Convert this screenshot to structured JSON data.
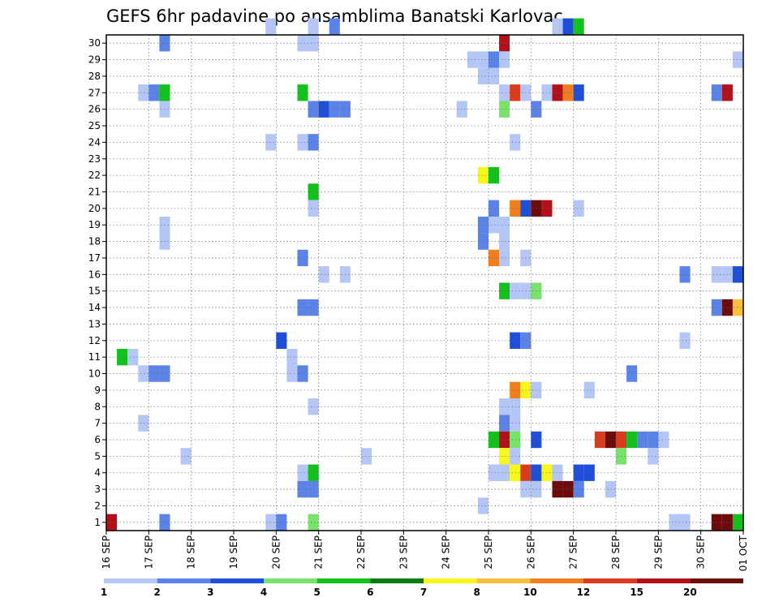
{
  "chart_data": {
    "type": "heatmap",
    "title": "GEFS 6hr padavine po ansamblima Banatski Karlovac",
    "x_tick_labels": [
      "16 SEP",
      "17 SEP",
      "18 SEP",
      "19 SEP",
      "20 SEP",
      "21 SEP",
      "22 SEP",
      "23 SEP",
      "24 SEP",
      "25 SEP",
      "26 SEP",
      "27 SEP",
      "28 SEP",
      "29 SEP",
      "30 SEP",
      "01 OCT"
    ],
    "y_tick_labels": [
      "1",
      "2",
      "3",
      "4",
      "5",
      "6",
      "7",
      "8",
      "9",
      "10",
      "11",
      "12",
      "13",
      "14",
      "15",
      "16",
      "17",
      "18",
      "19",
      "20",
      "21",
      "22",
      "23",
      "24",
      "25",
      "26",
      "27",
      "28",
      "29",
      "30"
    ],
    "x_steps_per_day": 4,
    "colorbar_labels": [
      "1",
      "2",
      "3",
      "4",
      "5",
      "6",
      "7",
      "8",
      "10",
      "12",
      "15",
      "20"
    ],
    "colorbar_colors": [
      "#b3c6f5",
      "#5b82e6",
      "#1f4fd9",
      "#77e36a",
      "#13c11c",
      "#0b7a10",
      "#f7f71a",
      "#f9be3c",
      "#f17e1e",
      "#dc3a1c",
      "#b3111a",
      "#6d0a0a"
    ],
    "grid": true,
    "ylim": [
      0,
      30
    ],
    "cells": [
      {
        "m": 30,
        "s": 15,
        "v": 1
      },
      {
        "m": 30,
        "s": 19,
        "v": 1
      },
      {
        "m": 30,
        "s": 21,
        "v": 2
      },
      {
        "m": 30,
        "s": 42,
        "v": 1
      },
      {
        "m": 30,
        "s": 43,
        "v": 3
      },
      {
        "m": 30,
        "s": 44,
        "v": 5
      },
      {
        "m": 29,
        "s": 5,
        "v": 2
      },
      {
        "m": 29,
        "s": 18,
        "v": 1
      },
      {
        "m": 29,
        "s": 19,
        "v": 1
      },
      {
        "m": 29,
        "s": 37,
        "v": 15
      },
      {
        "m": 28,
        "s": 34,
        "v": 1
      },
      {
        "m": 28,
        "s": 35,
        "v": 1
      },
      {
        "m": 28,
        "s": 36,
        "v": 2
      },
      {
        "m": 28,
        "s": 37,
        "v": 1
      },
      {
        "m": 28,
        "s": 59,
        "v": 1
      },
      {
        "m": 28,
        "s": 61,
        "v": 3
      },
      {
        "m": 28,
        "s": 62,
        "v": 1
      },
      {
        "m": 27,
        "s": 35,
        "v": 1
      },
      {
        "m": 27,
        "s": 36,
        "v": 1
      },
      {
        "m": 26,
        "s": 3,
        "v": 1
      },
      {
        "m": 26,
        "s": 4,
        "v": 2
      },
      {
        "m": 26,
        "s": 5,
        "v": 5
      },
      {
        "m": 26,
        "s": 18,
        "v": 5
      },
      {
        "m": 26,
        "s": 37,
        "v": 1
      },
      {
        "m": 26,
        "s": 38,
        "v": 12
      },
      {
        "m": 26,
        "s": 39,
        "v": 1
      },
      {
        "m": 26,
        "s": 41,
        "v": 1
      },
      {
        "m": 26,
        "s": 42,
        "v": 15
      },
      {
        "m": 26,
        "s": 43,
        "v": 10
      },
      {
        "m": 26,
        "s": 44,
        "v": 3
      },
      {
        "m": 26,
        "s": 57,
        "v": 2
      },
      {
        "m": 26,
        "s": 58,
        "v": 15
      },
      {
        "m": 26,
        "s": 62,
        "v": 1
      },
      {
        "m": 25,
        "s": 5,
        "v": 1
      },
      {
        "m": 25,
        "s": 19,
        "v": 2
      },
      {
        "m": 25,
        "s": 20,
        "v": 3
      },
      {
        "m": 25,
        "s": 21,
        "v": 2
      },
      {
        "m": 25,
        "s": 22,
        "v": 2
      },
      {
        "m": 25,
        "s": 33,
        "v": 1
      },
      {
        "m": 25,
        "s": 37,
        "v": 4
      },
      {
        "m": 25,
        "s": 40,
        "v": 2
      },
      {
        "m": 25,
        "s": 72,
        "v": 5
      },
      {
        "m": 23,
        "s": 15,
        "v": 1
      },
      {
        "m": 23,
        "s": 18,
        "v": 1
      },
      {
        "m": 23,
        "s": 19,
        "v": 2
      },
      {
        "m": 23,
        "s": 38,
        "v": 1
      },
      {
        "m": 21,
        "s": 35,
        "v": 7
      },
      {
        "m": 21,
        "s": 36,
        "v": 5
      },
      {
        "m": 20,
        "s": 19,
        "v": 5
      },
      {
        "m": 19,
        "s": 19,
        "v": 1
      },
      {
        "m": 19,
        "s": 36,
        "v": 2
      },
      {
        "m": 19,
        "s": 38,
        "v": 10
      },
      {
        "m": 19,
        "s": 39,
        "v": 3
      },
      {
        "m": 19,
        "s": 40,
        "v": 20
      },
      {
        "m": 19,
        "s": 41,
        "v": 15
      },
      {
        "m": 19,
        "s": 44,
        "v": 1
      },
      {
        "m": 19,
        "s": 63,
        "v": 2
      },
      {
        "m": 18,
        "s": 5,
        "v": 1
      },
      {
        "m": 18,
        "s": 35,
        "v": 2
      },
      {
        "m": 18,
        "s": 36,
        "v": 1
      },
      {
        "m": 18,
        "s": 37,
        "v": 1
      },
      {
        "m": 18,
        "s": 67,
        "v": 2
      },
      {
        "m": 17,
        "s": 5,
        "v": 1
      },
      {
        "m": 17,
        "s": 35,
        "v": 2
      },
      {
        "m": 17,
        "s": 37,
        "v": 1
      },
      {
        "m": 16,
        "s": 18,
        "v": 2
      },
      {
        "m": 16,
        "s": 36,
        "v": 10
      },
      {
        "m": 16,
        "s": 37,
        "v": 1
      },
      {
        "m": 16,
        "s": 39,
        "v": 1
      },
      {
        "m": 15,
        "s": 20,
        "v": 1
      },
      {
        "m": 15,
        "s": 22,
        "v": 1
      },
      {
        "m": 15,
        "s": 54,
        "v": 2
      },
      {
        "m": 15,
        "s": 57,
        "v": 1
      },
      {
        "m": 15,
        "s": 58,
        "v": 1
      },
      {
        "m": 15,
        "s": 59,
        "v": 3
      },
      {
        "m": 15,
        "s": 60,
        "v": 4
      },
      {
        "m": 14,
        "s": 37,
        "v": 5
      },
      {
        "m": 14,
        "s": 38,
        "v": 1
      },
      {
        "m": 14,
        "s": 39,
        "v": 1
      },
      {
        "m": 14,
        "s": 40,
        "v": 4
      },
      {
        "m": 13,
        "s": 18,
        "v": 2
      },
      {
        "m": 13,
        "s": 19,
        "v": 2
      },
      {
        "m": 13,
        "s": 57,
        "v": 2
      },
      {
        "m": 13,
        "s": 58,
        "v": 20
      },
      {
        "m": 13,
        "s": 59,
        "v": 8
      },
      {
        "m": 13,
        "s": 60,
        "v": 10
      },
      {
        "m": 13,
        "s": 61,
        "v": 12
      },
      {
        "m": 13,
        "s": 62,
        "v": 5
      },
      {
        "m": 13,
        "s": 63,
        "v": 7
      },
      {
        "m": 13,
        "s": 64,
        "v": 20
      },
      {
        "m": 13,
        "s": 65,
        "v": 12
      },
      {
        "m": 13,
        "s": 66,
        "v": 3
      },
      {
        "m": 13,
        "s": 67,
        "v": 3
      },
      {
        "m": 13,
        "s": 68,
        "v": 3
      },
      {
        "m": 11,
        "s": 16,
        "v": 3
      },
      {
        "m": 11,
        "s": 38,
        "v": 3
      },
      {
        "m": 11,
        "s": 39,
        "v": 2
      },
      {
        "m": 11,
        "s": 54,
        "v": 1
      },
      {
        "m": 10,
        "s": 1,
        "v": 5
      },
      {
        "m": 10,
        "s": 2,
        "v": 1
      },
      {
        "m": 10,
        "s": 17,
        "v": 1
      },
      {
        "m": 9,
        "s": 3,
        "v": 1
      },
      {
        "m": 9,
        "s": 4,
        "v": 2
      },
      {
        "m": 9,
        "s": 5,
        "v": 2
      },
      {
        "m": 9,
        "s": 17,
        "v": 1
      },
      {
        "m": 9,
        "s": 18,
        "v": 2
      },
      {
        "m": 9,
        "s": 49,
        "v": 2
      },
      {
        "m": 8,
        "s": 38,
        "v": 10
      },
      {
        "m": 8,
        "s": 39,
        "v": 7
      },
      {
        "m": 8,
        "s": 40,
        "v": 1
      },
      {
        "m": 8,
        "s": 45,
        "v": 1
      },
      {
        "m": 7,
        "s": 19,
        "v": 1
      },
      {
        "m": 7,
        "s": 37,
        "v": 1
      },
      {
        "m": 7,
        "s": 38,
        "v": 1
      },
      {
        "m": 6,
        "s": 3,
        "v": 1
      },
      {
        "m": 6,
        "s": 37,
        "v": 2
      },
      {
        "m": 6,
        "s": 38,
        "v": 1
      },
      {
        "m": 6,
        "s": 70,
        "v": 3
      },
      {
        "m": 6,
        "s": 71,
        "v": 2
      },
      {
        "m": 6,
        "s": 72,
        "v": 15
      },
      {
        "m": 5,
        "s": 36,
        "v": 5
      },
      {
        "m": 5,
        "s": 37,
        "v": 15
      },
      {
        "m": 5,
        "s": 38,
        "v": 4
      },
      {
        "m": 5,
        "s": 40,
        "v": 3
      },
      {
        "m": 5,
        "s": 46,
        "v": 12
      },
      {
        "m": 5,
        "s": 47,
        "v": 20
      },
      {
        "m": 5,
        "s": 48,
        "v": 12
      },
      {
        "m": 5,
        "s": 49,
        "v": 5
      },
      {
        "m": 5,
        "s": 50,
        "v": 2
      },
      {
        "m": 5,
        "s": 51,
        "v": 2
      },
      {
        "m": 5,
        "s": 52,
        "v": 1
      },
      {
        "m": 5,
        "s": 60,
        "v": 1
      },
      {
        "m": 5,
        "s": 63,
        "v": 10
      },
      {
        "m": 5,
        "s": 64,
        "v": 10
      },
      {
        "m": 4,
        "s": 7,
        "v": 1
      },
      {
        "m": 4,
        "s": 24,
        "v": 1
      },
      {
        "m": 4,
        "s": 37,
        "v": 7
      },
      {
        "m": 4,
        "s": 38,
        "v": 1
      },
      {
        "m": 4,
        "s": 48,
        "v": 4
      },
      {
        "m": 4,
        "s": 51,
        "v": 1
      },
      {
        "m": 3,
        "s": 18,
        "v": 1
      },
      {
        "m": 3,
        "s": 19,
        "v": 5
      },
      {
        "m": 3,
        "s": 36,
        "v": 1
      },
      {
        "m": 3,
        "s": 37,
        "v": 1
      },
      {
        "m": 3,
        "s": 38,
        "v": 7
      },
      {
        "m": 3,
        "s": 39,
        "v": 12
      },
      {
        "m": 3,
        "s": 40,
        "v": 3
      },
      {
        "m": 3,
        "s": 41,
        "v": 7
      },
      {
        "m": 3,
        "s": 42,
        "v": 1
      },
      {
        "m": 3,
        "s": 44,
        "v": 3
      },
      {
        "m": 3,
        "s": 45,
        "v": 3
      },
      {
        "m": 3,
        "s": 67,
        "v": 1
      },
      {
        "m": 2,
        "s": 18,
        "v": 2
      },
      {
        "m": 2,
        "s": 19,
        "v": 2
      },
      {
        "m": 2,
        "s": 39,
        "v": 1
      },
      {
        "m": 2,
        "s": 40,
        "v": 1
      },
      {
        "m": 2,
        "s": 42,
        "v": 20
      },
      {
        "m": 2,
        "s": 43,
        "v": 20
      },
      {
        "m": 2,
        "s": 44,
        "v": 2
      },
      {
        "m": 2,
        "s": 47,
        "v": 1
      },
      {
        "m": 1,
        "s": 35,
        "v": 1
      },
      {
        "m": 0,
        "s": 0,
        "v": 15
      },
      {
        "m": 0,
        "s": 5,
        "v": 2
      },
      {
        "m": 0,
        "s": 15,
        "v": 1
      },
      {
        "m": 0,
        "s": 16,
        "v": 2
      },
      {
        "m": 0,
        "s": 19,
        "v": 4
      },
      {
        "m": 0,
        "s": 53,
        "v": 1
      },
      {
        "m": 0,
        "s": 54,
        "v": 1
      },
      {
        "m": 0,
        "s": 57,
        "v": 20
      },
      {
        "m": 0,
        "s": 58,
        "v": 20
      },
      {
        "m": 0,
        "s": 59,
        "v": 5
      },
      {
        "m": 0,
        "s": 60,
        "v": 7
      },
      {
        "m": 0,
        "s": 61,
        "v": 15
      },
      {
        "m": 0,
        "s": 62,
        "v": 10
      },
      {
        "m": 0,
        "s": 64,
        "v": 1
      },
      {
        "m": 0,
        "s": 67,
        "v": 1
      },
      {
        "m": 0,
        "s": 68,
        "v": 1
      }
    ]
  }
}
